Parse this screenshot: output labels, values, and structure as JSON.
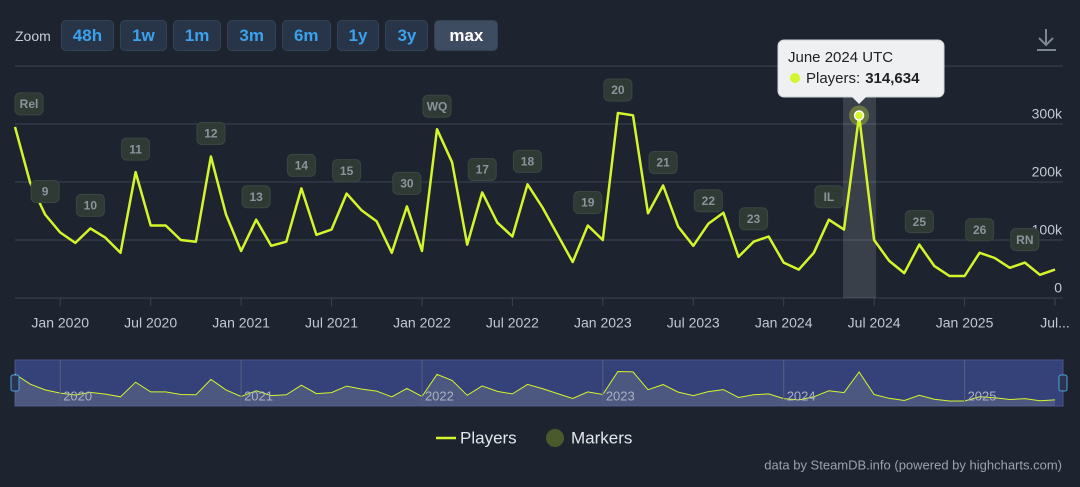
{
  "zoom": {
    "label": "Zoom",
    "buttons": [
      "48h",
      "1w",
      "1m",
      "3m",
      "6m",
      "1y",
      "3y",
      "max"
    ],
    "selected": 7
  },
  "chart_data": {
    "type": "line",
    "x": [
      "2019-10",
      "2019-11",
      "2019-12",
      "2020-01",
      "2020-02",
      "2020-03",
      "2020-04",
      "2020-05",
      "2020-06",
      "2020-07",
      "2020-08",
      "2020-09",
      "2020-10",
      "2020-11",
      "2020-12",
      "2021-01",
      "2021-02",
      "2021-03",
      "2021-04",
      "2021-05",
      "2021-06",
      "2021-07",
      "2021-08",
      "2021-09",
      "2021-10",
      "2021-11",
      "2021-12",
      "2022-01",
      "2022-02",
      "2022-03",
      "2022-04",
      "2022-05",
      "2022-06",
      "2022-07",
      "2022-08",
      "2022-09",
      "2022-10",
      "2022-11",
      "2022-12",
      "2023-01",
      "2023-02",
      "2023-03",
      "2023-04",
      "2023-05",
      "2023-06",
      "2023-07",
      "2023-08",
      "2023-09",
      "2023-10",
      "2023-11",
      "2023-12",
      "2024-01",
      "2024-02",
      "2024-03",
      "2024-04",
      "2024-05",
      "2024-06",
      "2024-07",
      "2024-08",
      "2024-09",
      "2024-10",
      "2024-11",
      "2024-12",
      "2025-01",
      "2025-02",
      "2025-03",
      "2025-04",
      "2025-05",
      "2025-06",
      "2025-07"
    ],
    "series": [
      {
        "name": "Players",
        "color": "#d4f52b",
        "values": [
          295000,
          199000,
          144000,
          113000,
          95000,
          120000,
          104000,
          78000,
          217000,
          125000,
          125000,
          100000,
          97000,
          244000,
          144000,
          81000,
          135000,
          90000,
          97000,
          189000,
          109000,
          118000,
          180000,
          151000,
          132000,
          78000,
          158000,
          81000,
          291000,
          234000,
          92000,
          182000,
          130000,
          106000,
          196000,
          156000,
          109000,
          62000,
          125000,
          100000,
          319000,
          315000,
          146000,
          194000,
          123000,
          90000,
          128000,
          147000,
          71000,
          97000,
          106000,
          61000,
          49000,
          78000,
          135000,
          118000,
          314634,
          100000,
          64000,
          43000,
          92000,
          55000,
          38000,
          38000,
          78000,
          69000,
          52000,
          61000,
          40000,
          49000
        ]
      }
    ],
    "markers": {
      "name": "Markers",
      "color": "#4b5a2b",
      "items": [
        {
          "x": "2019-10",
          "label": "Rel"
        },
        {
          "x": "2019-12",
          "label": "9"
        },
        {
          "x": "2020-03",
          "label": "10"
        },
        {
          "x": "2020-06",
          "label": "11"
        },
        {
          "x": "2020-11",
          "label": "12"
        },
        {
          "x": "2021-02",
          "label": "13"
        },
        {
          "x": "2021-05",
          "label": "14"
        },
        {
          "x": "2021-08",
          "label": "15"
        },
        {
          "x": "2021-12",
          "label": "30"
        },
        {
          "x": "2022-02",
          "label": "WQ"
        },
        {
          "x": "2022-05",
          "label": "17"
        },
        {
          "x": "2022-08",
          "label": "18"
        },
        {
          "x": "2022-12",
          "label": "19"
        },
        {
          "x": "2023-02",
          "label": "20"
        },
        {
          "x": "2023-05",
          "label": "21"
        },
        {
          "x": "2023-08",
          "label": "22"
        },
        {
          "x": "2023-11",
          "label": "23"
        },
        {
          "x": "2024-04",
          "label": "IL"
        },
        {
          "x": "2024-10",
          "label": "25"
        },
        {
          "x": "2025-02",
          "label": "26"
        },
        {
          "x": "2025-05",
          "label": "RN"
        }
      ]
    },
    "ylim": [
      0,
      400000
    ],
    "yticks": [
      0,
      {
        "value": 100000,
        "label": "100k"
      },
      {
        "value": 200000,
        "label": "200k"
      },
      {
        "value": 300000,
        "label": "300k"
      }
    ],
    "xticks": [
      {
        "value": "2020-01",
        "label": "Jan 2020"
      },
      {
        "value": "2020-07",
        "label": "Jul 2020"
      },
      {
        "value": "2021-01",
        "label": "Jan 2021"
      },
      {
        "value": "2021-07",
        "label": "Jul 2021"
      },
      {
        "value": "2022-01",
        "label": "Jan 2022"
      },
      {
        "value": "2022-07",
        "label": "Jul 2022"
      },
      {
        "value": "2023-01",
        "label": "Jan 2023"
      },
      {
        "value": "2023-07",
        "label": "Jul 2023"
      },
      {
        "value": "2024-01",
        "label": "Jan 2024"
      },
      {
        "value": "2024-07",
        "label": "Jul 2024"
      },
      {
        "value": "2025-01",
        "label": "Jan 2025"
      },
      {
        "value": "2025-07",
        "label": "Jul..."
      }
    ],
    "navigator_ticks": [
      {
        "value": "2020-01",
        "label": "2020"
      },
      {
        "value": "2021-01",
        "label": "2021"
      },
      {
        "value": "2022-01",
        "label": "2022"
      },
      {
        "value": "2023-01",
        "label": "2023"
      },
      {
        "value": "2024-01",
        "label": "2024"
      },
      {
        "value": "2025-01",
        "label": "2025"
      }
    ],
    "grid": true,
    "tooltip": {
      "x": "2024-06",
      "title": "June 2024 UTC",
      "label": "Players:",
      "value_text": "314,634"
    },
    "credits": "data by SteamDB.info (powered by highcharts.com)"
  }
}
